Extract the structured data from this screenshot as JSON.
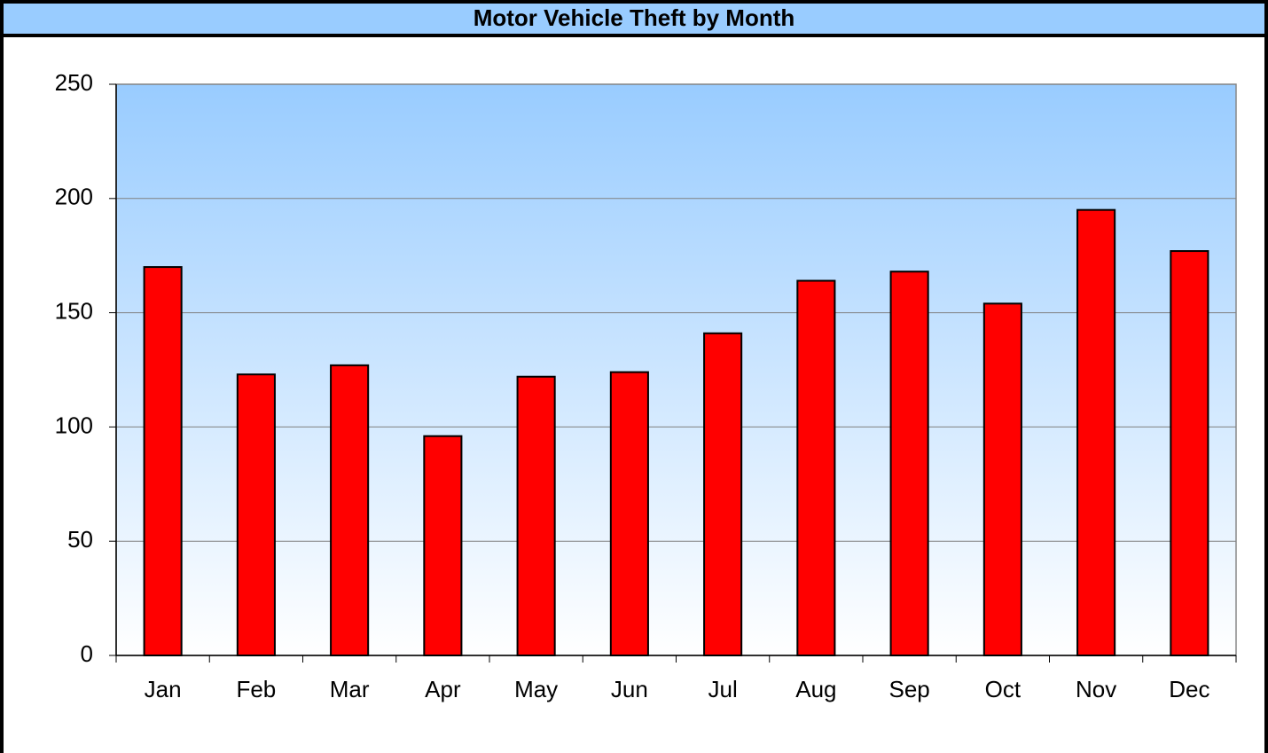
{
  "chart_data": {
    "type": "bar",
    "title": "Motor Vehicle Theft by Month",
    "categories": [
      "Jan",
      "Feb",
      "Mar",
      "Apr",
      "May",
      "Jun",
      "Jul",
      "Aug",
      "Sep",
      "Oct",
      "Nov",
      "Dec"
    ],
    "values": [
      170,
      123,
      127,
      96,
      122,
      124,
      141,
      164,
      168,
      154,
      195,
      177
    ],
    "color": "#ff0000",
    "ylim": [
      0,
      250
    ],
    "yticks": [
      0,
      50,
      100,
      150,
      200,
      250
    ],
    "grid": true
  }
}
